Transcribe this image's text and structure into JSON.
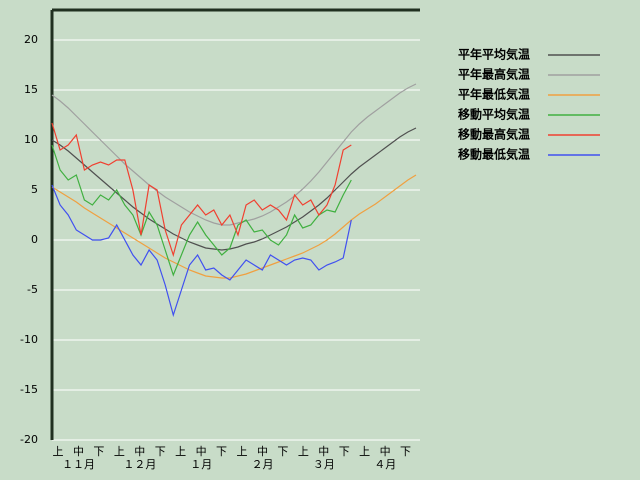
{
  "chart_data": {
    "type": "line",
    "x": [
      0,
      4,
      8,
      12,
      16,
      20,
      24,
      28,
      32,
      36,
      40,
      44,
      48,
      52,
      56,
      60,
      64,
      68,
      72,
      76,
      80,
      84,
      88,
      92,
      96,
      100,
      104,
      108,
      112,
      116,
      120,
      124,
      128,
      132,
      136,
      140,
      144,
      148,
      152,
      156,
      160,
      164,
      168,
      172,
      176,
      180
    ],
    "xlim": [
      0,
      182
    ],
    "ylim": [
      -20,
      23
    ],
    "yticks": [
      20,
      15,
      10,
      5,
      0,
      -5,
      -10,
      -15,
      -20
    ],
    "grid": true,
    "x_tick_labels": [
      "上",
      "中",
      "下",
      "上",
      "中",
      "下",
      "上",
      "中",
      "下",
      "上",
      "中",
      "下",
      "上",
      "中",
      "下",
      "上",
      "中",
      "下"
    ],
    "months": [
      "１１月",
      "１２月",
      "１月",
      "２月",
      "３月",
      "４月"
    ],
    "legend": "top-right",
    "series": [
      {
        "name": "平年平均気温",
        "color": "#505050",
        "values": [
          10.0,
          9.5,
          8.9,
          8.2,
          7.5,
          6.8,
          6.1,
          5.4,
          4.7,
          4.0,
          3.3,
          2.7,
          2.1,
          1.6,
          1.1,
          0.6,
          0.2,
          -0.2,
          -0.5,
          -0.8,
          -0.9,
          -1.0,
          -0.9,
          -0.7,
          -0.4,
          -0.2,
          0.1,
          0.5,
          0.9,
          1.3,
          1.8,
          2.3,
          2.9,
          3.5,
          4.2,
          5.0,
          5.8,
          6.6,
          7.3,
          7.9,
          8.5,
          9.1,
          9.7,
          10.3,
          10.8,
          11.2
        ]
      },
      {
        "name": "平年最高気温",
        "color": "#a0a0a0",
        "values": [
          14.5,
          13.9,
          13.2,
          12.4,
          11.6,
          10.8,
          10.0,
          9.2,
          8.4,
          7.6,
          6.9,
          6.2,
          5.5,
          4.9,
          4.3,
          3.8,
          3.3,
          2.8,
          2.4,
          2.0,
          1.7,
          1.5,
          1.5,
          1.7,
          1.9,
          2.1,
          2.4,
          2.8,
          3.3,
          3.8,
          4.4,
          5.1,
          5.9,
          6.8,
          7.8,
          8.8,
          9.8,
          10.8,
          11.6,
          12.3,
          12.9,
          13.5,
          14.1,
          14.7,
          15.2,
          15.6
        ]
      },
      {
        "name": "平年最低気温",
        "color": "#f0a040",
        "values": [
          5.3,
          4.8,
          4.3,
          3.8,
          3.2,
          2.7,
          2.2,
          1.7,
          1.2,
          0.7,
          0.2,
          -0.3,
          -0.8,
          -1.3,
          -1.8,
          -2.2,
          -2.6,
          -3.0,
          -3.3,
          -3.6,
          -3.7,
          -3.8,
          -3.8,
          -3.6,
          -3.4,
          -3.1,
          -2.8,
          -2.5,
          -2.2,
          -1.9,
          -1.6,
          -1.3,
          -0.9,
          -0.5,
          0.0,
          0.6,
          1.3,
          2.0,
          2.6,
          3.1,
          3.6,
          4.2,
          4.8,
          5.4,
          6.0,
          6.5
        ]
      },
      {
        "name": "移動平均気温",
        "color": "#40b040",
        "values": [
          9.5,
          7.0,
          6.0,
          6.5,
          4.0,
          3.5,
          4.5,
          4.0,
          5.0,
          3.5,
          2.5,
          0.5,
          2.8,
          1.5,
          -1.0,
          -3.5,
          -1.5,
          0.5,
          1.8,
          0.5,
          -0.5,
          -1.5,
          -0.8,
          1.5,
          2.0,
          0.8,
          1.0,
          0.0,
          -0.5,
          0.5,
          2.5,
          1.2,
          1.5,
          2.5,
          3.0,
          2.8,
          4.5,
          6.0,
          null,
          null,
          null,
          null,
          null,
          null,
          null,
          null
        ]
      },
      {
        "name": "移動最高気温",
        "color": "#f04030",
        "values": [
          11.7,
          9.0,
          9.5,
          10.5,
          7.0,
          7.5,
          7.8,
          7.5,
          8.0,
          8.0,
          5.0,
          0.5,
          5.5,
          5.0,
          1.0,
          -1.5,
          1.5,
          2.5,
          3.5,
          2.5,
          3.0,
          1.5,
          2.5,
          0.5,
          3.5,
          4.0,
          3.0,
          3.5,
          3.0,
          2.0,
          4.5,
          3.5,
          4.0,
          2.5,
          3.5,
          5.5,
          9.0,
          9.5,
          null,
          null,
          null,
          null,
          null,
          null,
          null,
          null
        ]
      },
      {
        "name": "移動最低気温",
        "color": "#4050f0",
        "values": [
          5.5,
          3.5,
          2.5,
          1.0,
          0.5,
          0.0,
          0.0,
          0.2,
          1.5,
          0.0,
          -1.5,
          -2.5,
          -1.0,
          -2.0,
          -4.5,
          -7.5,
          -5.0,
          -2.5,
          -1.5,
          -3.0,
          -2.8,
          -3.5,
          -4.0,
          -3.0,
          -2.0,
          -2.5,
          -3.0,
          -1.5,
          -2.0,
          -2.5,
          -2.0,
          -1.8,
          -2.0,
          -3.0,
          -2.5,
          -2.2,
          -1.8,
          2.0,
          null,
          null,
          null,
          null,
          null,
          null,
          null,
          null
        ]
      }
    ]
  }
}
